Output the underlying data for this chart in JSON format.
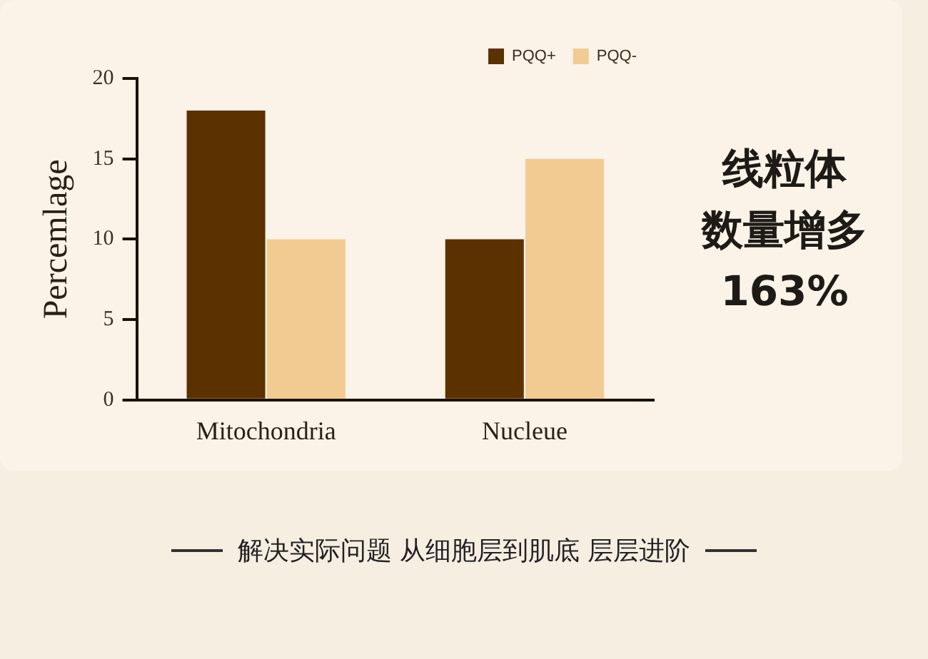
{
  "chart_data": {
    "type": "bar",
    "ylabel": "Percemlage",
    "categories": [
      "Mitochondria",
      "Nucleue"
    ],
    "series": [
      {
        "name": "PQQ+",
        "color": "#5c3100",
        "values": [
          18,
          10
        ]
      },
      {
        "name": "PQQ-",
        "color": "#f2cb93",
        "values": [
          10,
          15
        ]
      }
    ],
    "ylim": [
      0,
      20
    ],
    "yticks": [
      0,
      5,
      10,
      15,
      20
    ],
    "legend": "top right",
    "annotations": [
      "线粒体",
      "数量增多",
      "163%",
      "解决实际问题 从细胞层到肌底 层层进阶"
    ]
  }
}
